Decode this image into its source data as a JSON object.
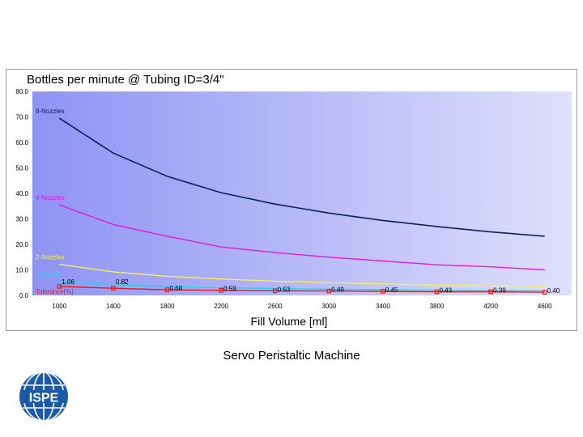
{
  "caption": "Servo Peristaltic Machine",
  "logo": {
    "text": "ISPE",
    "icon": "globe-logo-icon"
  },
  "colors": {
    "plot_bg_left": "#8f93f3",
    "plot_bg_right": "#dfe0fb",
    "nozzles8": "#0d1f5c",
    "nozzles4": "#e01ae0",
    "nozzles2": "#f3ef5a",
    "nozzles1": "#22d4f0",
    "tolerance": "#e0201e"
  },
  "chart_data": {
    "type": "line",
    "title": "Bottles per minute @ Tubing ID=3/4\"",
    "xlabel": "Fill Volume [ml]",
    "ylabel": "",
    "x": [
      1000,
      1400,
      1800,
      2200,
      2600,
      3000,
      3400,
      3800,
      4200,
      4600
    ],
    "xlim": [
      800,
      4800
    ],
    "ylim": [
      0,
      80
    ],
    "yticks": [
      "0.0",
      "10.0",
      "20.0",
      "30.0",
      "40.0",
      "50.0",
      "60.0",
      "70.0",
      "80.0"
    ],
    "xticks": [
      "1000",
      "1400",
      "1800",
      "2200",
      "2600",
      "3000",
      "3400",
      "3800",
      "4200",
      "4600"
    ],
    "grid": false,
    "legend": "inline labels at left",
    "series": [
      {
        "name": "8-Nozzles",
        "color": "#0d1f5c",
        "values": [
          69.5,
          55.8,
          46.7,
          40.3,
          35.8,
          32.3,
          29.4,
          27.0,
          24.9,
          23.2
        ]
      },
      {
        "name": "4-Nozzles",
        "color": "#e01ae0",
        "values": [
          35.5,
          27.8,
          23.2,
          19.0,
          16.8,
          15.0,
          13.5,
          12.0,
          11.2,
          10.0
        ]
      },
      {
        "name": "2-Nozzles",
        "color": "#f3ef5a",
        "values": [
          12.2,
          9.2,
          7.5,
          6.4,
          5.6,
          5.0,
          4.5,
          4.0,
          3.7,
          3.4
        ]
      },
      {
        "name": "1-Nozzle",
        "color": "#22d4f0",
        "values": [
          5.4,
          4.2,
          3.5,
          3.0,
          2.7,
          2.4,
          2.2,
          2.0,
          1.9,
          1.8
        ]
      },
      {
        "name": "Tolerance[%]",
        "color": "#e0201e",
        "markers": true,
        "values": [
          3.5,
          2.8,
          2.2,
          2.0,
          1.8,
          1.7,
          1.6,
          1.4,
          1.4,
          1.2
        ],
        "data_labels": [
          "1.06",
          "0.82",
          "0.68",
          "0.59",
          "0.53",
          "0.49",
          "0.45",
          "0.43",
          "0.39",
          "0.40"
        ]
      }
    ]
  }
}
